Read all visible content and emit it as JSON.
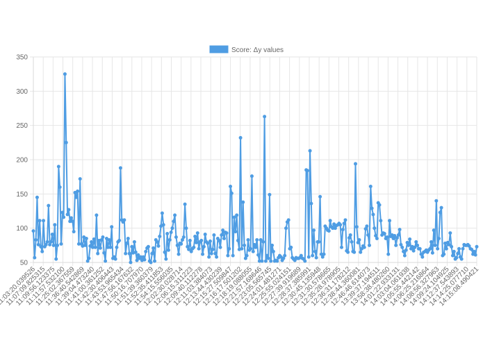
{
  "chart_data": {
    "type": "line",
    "title": "",
    "xlabel": "",
    "ylabel": "",
    "ylim": [
      50,
      350
    ],
    "y_ticks": [
      50,
      100,
      150,
      200,
      250,
      300,
      350
    ],
    "grid": true,
    "legend_position": "top",
    "colors": {
      "series": "#4f9de3",
      "grid": "#e6e6e6",
      "text": "#666666"
    },
    "x_tick_labels": [
      "11:03:20.039526",
      "11:07:09.825315",
      "11:09:56.123375",
      "11:11:57.532100",
      "11:25:02.367559",
      "11:36:40.542869",
      "11:39:04.473240",
      "11:41:00.361252",
      "11:42:30.406443",
      "11:43:53.965434",
      "11:47:56.167632",
      "11:50:16.707970",
      "11:51:39.360379",
      "11:52:35.411853",
      "11:54:15.556035",
      "12:02:30.028714",
      "12:06:15.311223",
      "12:09:40.112278",
      "12:11:03.384073",
      "12:13:44.430239",
      "12:15:27.509847",
      "12:16:17.501202",
      "12:18:19.088055",
      "12:21:57.168646",
      "12:23:05.565745",
      "12:24:01.481271",
      "12:25:55.024151",
      "12:27:39.919689",
      "12:28:37.385991",
      "12:30:45.135948",
      "12:31:30.578665",
      "12:35:28.978905",
      "12:36:31.178212",
      "12:38:44.360081",
      "12:46:46.614073",
      "13:39:37.194511",
      "13:58:38.480260",
      "14:01:22.933131",
      "14:03:04.061938",
      "14:05:55.442142",
      "14:06:25.216864",
      "14:08:56.327963",
      "14:09:24.104925",
      "14:12:37.543893",
      "14:14:25.077710",
      "14:15:08.490421"
    ],
    "series": [
      {
        "name": "Score: Δy values",
        "values": [
          96,
          57,
          83,
          145,
          76,
          111,
          73,
          66,
          111,
          73,
          76,
          80,
          133,
          76,
          80,
          91,
          75,
          105,
          55,
          75,
          190,
          160,
          77,
          123,
          116,
          325,
          225,
          120,
          127,
          110,
          115,
          110,
          95,
          152,
          145,
          154,
          77,
          172,
          77,
          74,
          87,
          75,
          85,
          52,
          56,
          74,
          80,
          72,
          84,
          72,
          119,
          63,
          82,
          71,
          83,
          87,
          64,
          52,
          85,
          72,
          83,
          72,
          102,
          56,
          58,
          55,
          72,
          80,
          82,
          188,
          112,
          109,
          112,
          63,
          78,
          85,
          63,
          50,
          73,
          64,
          80,
          65,
          53,
          61,
          56,
          58,
          53,
          58,
          54,
          66,
          71,
          73,
          52,
          50,
          63,
          71,
          52,
          83,
          80,
          74,
          88,
          103,
          122,
          105,
          65,
          55,
          92,
          68,
          83,
          94,
          100,
          110,
          119,
          87,
          75,
          62,
          78,
          77,
          83,
          87,
          135,
          100,
          73,
          69,
          82,
          66,
          70,
          72,
          88,
          79,
          93,
          70,
          80,
          82,
          62,
          73,
          91,
          80,
          78,
          58,
          81,
          63,
          69,
          90,
          63,
          58,
          85,
          82,
          72,
          90,
          97,
          85,
          94,
          93,
          60,
          70,
          161,
          151,
          60,
          116,
          95,
          119,
          82,
          69,
          232,
          70,
          138,
          75,
          56,
          60,
          83,
          68,
          70,
          176,
          66,
          76,
          72,
          83,
          61,
          52,
          83,
          52,
          80,
          263,
          52,
          60,
          56,
          149,
          52,
          75,
          66,
          52,
          53,
          52,
          57,
          60,
          58,
          53,
          56,
          60,
          100,
          109,
          112,
          70,
          72,
          57,
          55,
          53,
          57,
          56,
          56,
          57,
          60,
          56,
          55,
          52,
          185,
          184,
          58,
          213,
          136,
          60,
          97,
          66,
          57,
          80,
          80,
          146,
          62,
          58,
          62,
          103,
          100,
          97,
          96,
          111,
          102,
          100,
          106,
          100,
          104,
          105,
          107,
          105,
          72,
          98,
          107,
          112,
          67,
          65,
          86,
          90,
          80,
          66,
          65,
          194,
          102,
          79,
          83,
          65,
          70,
          74,
          72,
          99,
          103,
          90,
          75,
          161,
          129,
          120,
          100,
          89,
          85,
          137,
          134,
          111,
          90,
          93,
          92,
          85,
          87,
          62,
          111,
          88,
          90,
          85,
          89,
          75,
          86,
          90,
          98,
          76,
          72,
          66,
          60,
          68,
          79,
          75,
          84,
          70,
          73,
          67,
          72,
          80,
          75,
          70,
          70,
          62,
          58,
          65,
          66,
          68,
          65,
          68,
          70,
          80,
          64,
          97,
          75,
          140,
          70,
          85,
          123,
          130,
          60,
          62,
          78,
          70,
          79,
          76,
          93,
          73,
          60,
          66,
          55,
          57,
          63,
          70,
          58,
          55,
          70,
          76,
          75,
          75,
          76,
          74,
          70,
          69,
          62,
          66,
          61,
          73
        ]
      }
    ]
  }
}
